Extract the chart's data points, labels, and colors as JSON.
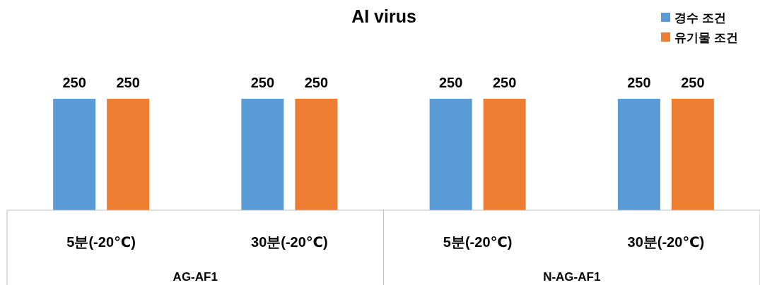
{
  "chart_data": {
    "type": "bar",
    "title": "AI virus",
    "categories": [
      "5분(-20℃)",
      "30분(-20℃)",
      "5분(-20℃)",
      "30분(-20℃)"
    ],
    "series": [
      {
        "name": "경수 조건",
        "color": "#5b9bd5",
        "values": [
          250,
          250,
          250,
          250
        ]
      },
      {
        "name": "유기물 조건",
        "color": "#ed7d31",
        "values": [
          250,
          250,
          250,
          250
        ]
      }
    ],
    "data_labels": true,
    "legend": "top right",
    "annotations": [
      "AG-AF1",
      "N-AG-AF1"
    ]
  }
}
